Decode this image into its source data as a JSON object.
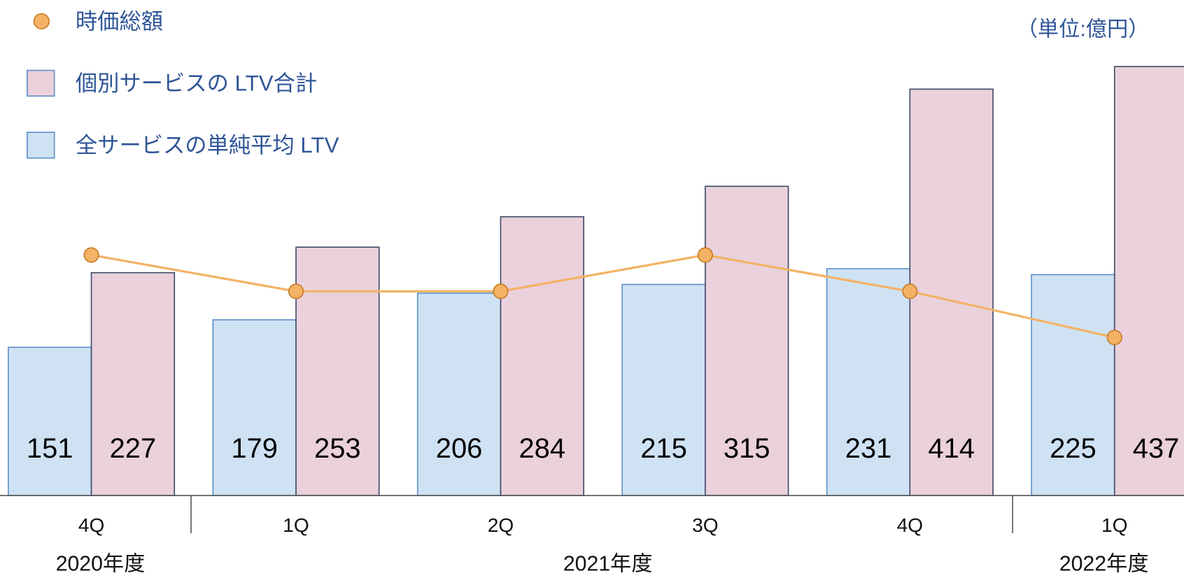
{
  "chart_data": {
    "type": "bar",
    "unit_note": "（単位:億円）",
    "categories": [
      "4Q",
      "1Q",
      "2Q",
      "3Q",
      "4Q",
      "1Q"
    ],
    "period_labels": [
      "2020年度",
      "2021年度",
      "2022年度"
    ],
    "ylim": [
      0,
      500
    ],
    "series": [
      {
        "name": "全サービスの単純平均 LTV",
        "color": "#cfe2f3",
        "values": [
          151,
          179,
          206,
          215,
          231,
          225
        ]
      },
      {
        "name": "個別サービスの LTV合計",
        "color": "#ead1dc",
        "values": [
          227,
          253,
          284,
          315,
          414,
          437
        ]
      },
      {
        "name": "時価総額",
        "type": "line",
        "color": "#f4b266",
        "values": [
          245,
          208,
          208,
          245,
          208,
          161
        ]
      }
    ]
  }
}
